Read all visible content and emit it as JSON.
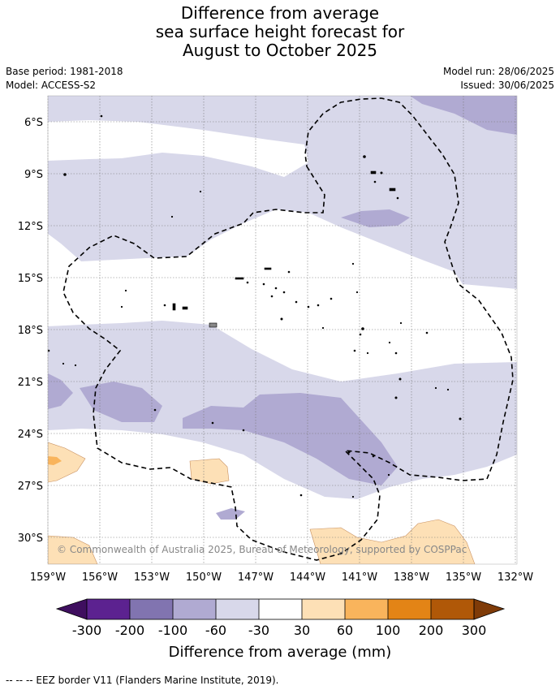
{
  "title_lines": [
    "Difference from average",
    "sea surface height forecast for",
    "August to October 2025"
  ],
  "meta": {
    "base_period": "Base period: 1981-2018",
    "model": "Model: ACCESS-S2",
    "model_run": "Model run: 28/06/2025",
    "issued": "Issued: 30/06/2025"
  },
  "map": {
    "lat_labels": [
      "6°S",
      "9°S",
      "12°S",
      "15°S",
      "18°S",
      "21°S",
      "24°S",
      "27°S",
      "30°S"
    ],
    "lon_labels": [
      "159°W",
      "156°W",
      "153°W",
      "150°W",
      "147°W",
      "144°W",
      "141°W",
      "138°W",
      "135°W",
      "132°W"
    ],
    "copyright": "© Commonwealth of Australia 2025, Bureau of Meteorology, supported by COSPPac",
    "colors": {
      "neg_60_30": "#d8d8ea",
      "neg_100_60": "#b0aad2",
      "pos_30_60": "#fde0b6",
      "pos_60_100": "#f9b45c",
      "eez_line": "#000000"
    }
  },
  "legend": {
    "title": "Difference from average (mm)",
    "ticks": [
      "-300",
      "-200",
      "-100",
      "-60",
      "-30",
      "30",
      "60",
      "100",
      "200",
      "300"
    ],
    "colors": [
      "#3f0f5f",
      "#5c2290",
      "#8174b0",
      "#b0aad2",
      "#d8d8ea",
      "#ffffff",
      "#fde0b6",
      "#f9b45c",
      "#e38416",
      "#b05808",
      "#7f3b08"
    ]
  },
  "footer": "--  --  -- EEZ border V11 (Flanders Marine Institute, 2019)."
}
